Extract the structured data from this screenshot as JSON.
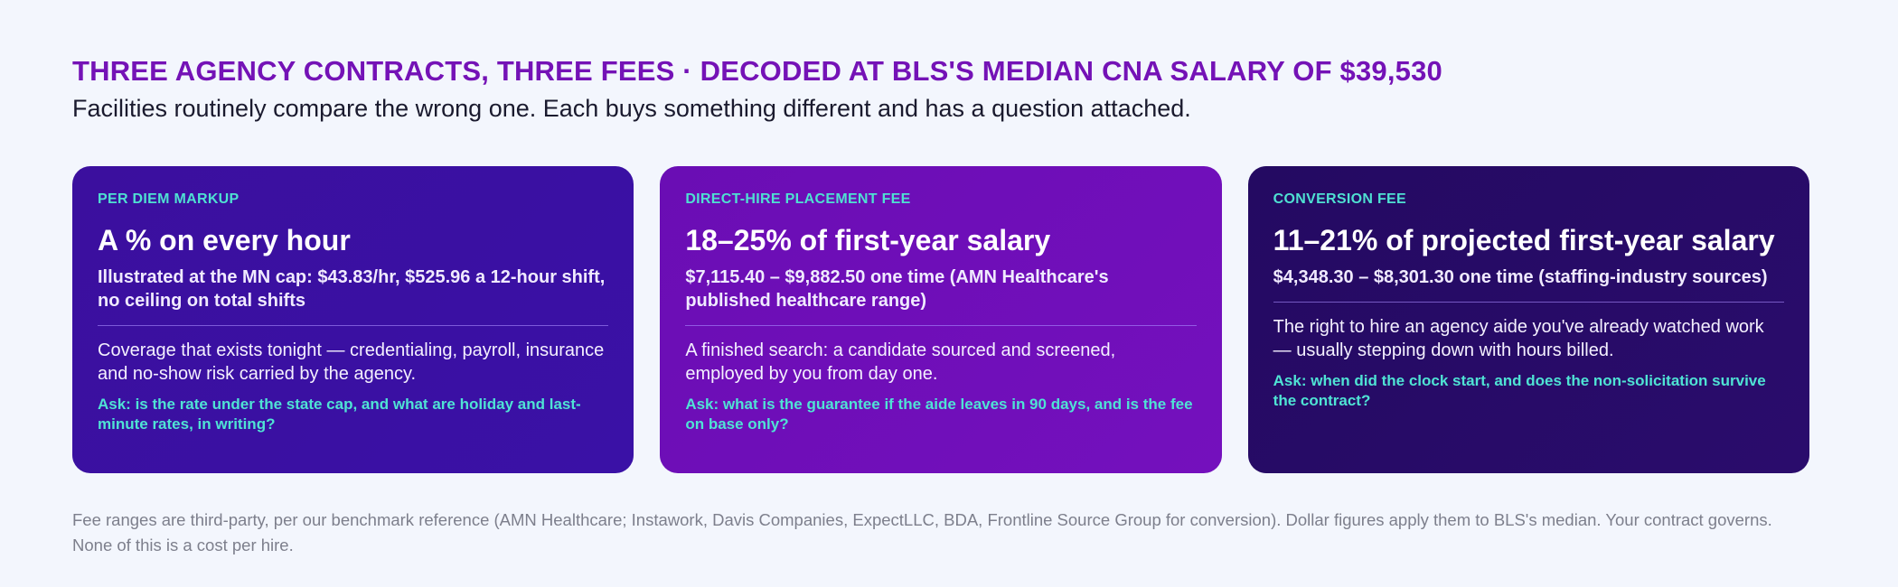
{
  "header": {
    "title": "THREE AGENCY CONTRACTS, THREE FEES · DECODED AT BLS'S MEDIAN CNA SALARY OF $39,530",
    "subtitle": "Facilities routinely compare the wrong one. Each buys something different and has a question attached."
  },
  "cards": [
    {
      "label": "PER DIEM MARKUP",
      "heading": "A % on every hour",
      "detail": "Illustrated at the MN cap: $43.83/hr, $525.96 a 12-hour shift, no ceiling on total shifts",
      "body": "Coverage that exists tonight — credentialing, payroll, insurance and no-show risk carried by the agency.",
      "ask": "Ask: is the rate under the state cap, and what are holiday and last-minute rates, in writing?"
    },
    {
      "label": "DIRECT-HIRE PLACEMENT FEE",
      "heading": "18–25% of first-year salary",
      "detail": "$7,115.40 – $9,882.50 one time (AMN Healthcare's published healthcare range)",
      "body": "A finished search: a candidate sourced and screened, employed by you from day one.",
      "ask": "Ask: what is the guarantee if the aide leaves in 90 days, and is the fee on base only?"
    },
    {
      "label": "CONVERSION FEE",
      "heading": "11–21% of projected first-year salary",
      "detail": "$4,348.30 – $8,301.30 one time (staffing-industry sources)",
      "body": "The right to hire an agency aide you've already watched work — usually stepping down with hours billed.",
      "ask": "Ask: when did the clock start, and does the non-solicitation survive the contract?"
    }
  ],
  "footer": "Fee ranges are third-party, per our benchmark reference (AMN Healthcare; Instawork, Davis Companies, ExpectLLC, BDA, Frontline Source Group for conversion). Dollar figures apply them to BLS's median. Your contract governs. None of this is a cost per hire."
}
